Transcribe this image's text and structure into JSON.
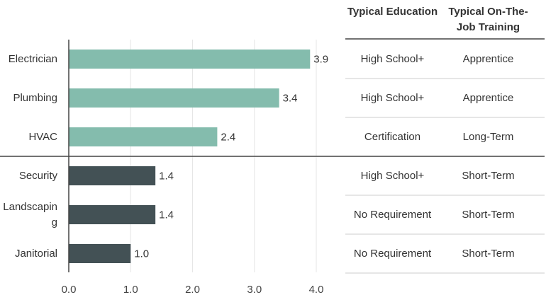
{
  "chart_data": {
    "type": "bar",
    "orientation": "horizontal",
    "categories": [
      "Electrician",
      "Plumbing",
      "HVAC",
      "Security",
      "Landscaping",
      "Janitorial"
    ],
    "values": [
      3.9,
      3.4,
      2.4,
      1.4,
      1.4,
      1.0
    ],
    "value_labels": [
      "3.9",
      "3.4",
      "2.4",
      "1.4",
      "1.4",
      "1.0"
    ],
    "groups": [
      "skilled",
      "skilled",
      "skilled",
      "unskilled",
      "unskilled",
      "unskilled"
    ],
    "xlim": [
      0,
      4
    ],
    "xticks": [
      "0.0",
      "1.0",
      "2.0",
      "3.0",
      "4.0"
    ],
    "grid": true,
    "title": "",
    "xlabel": "",
    "ylabel": ""
  },
  "colors": {
    "skilled": "#84bcad",
    "unskilled": "#435155",
    "grid": "#e6e6e6",
    "axis": "#444444"
  },
  "table": {
    "headers": [
      "Typical Education",
      "Typical On-The-Job Training"
    ],
    "rows": [
      [
        "High School+",
        "Apprentice"
      ],
      [
        "High School+",
        "Apprentice"
      ],
      [
        "Certification",
        "Long-Term"
      ],
      [
        "High School+",
        "Short-Term"
      ],
      [
        "No Requirement",
        "Short-Term"
      ],
      [
        "No Requirement",
        "Short-Term"
      ]
    ]
  }
}
